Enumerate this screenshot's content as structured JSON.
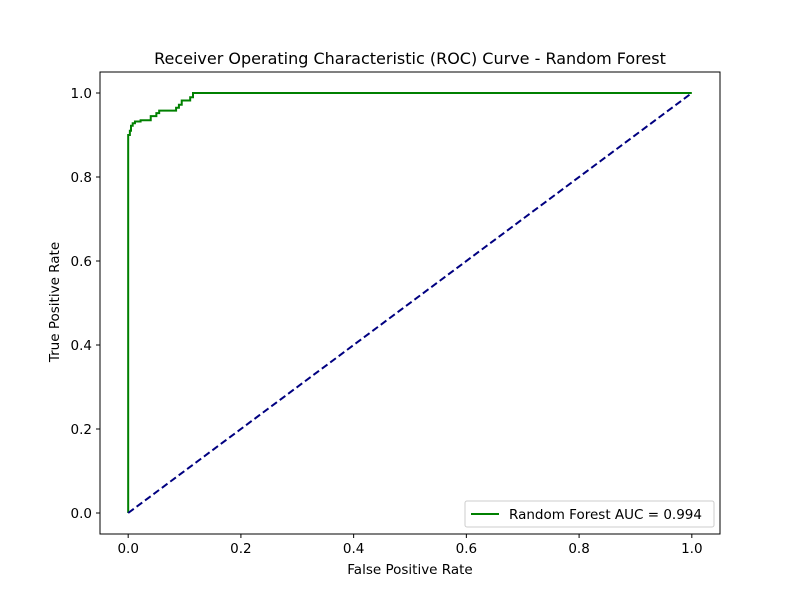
{
  "chart_data": {
    "type": "line",
    "title": "Receiver Operating Characteristic (ROC) Curve - Random Forest",
    "xlabel": "False Positive Rate",
    "ylabel": "True Positive Rate",
    "xlim": [
      -0.05,
      1.05
    ],
    "ylim": [
      -0.05,
      1.05
    ],
    "xticks": [
      "0.0",
      "0.2",
      "0.4",
      "0.6",
      "0.8",
      "1.0"
    ],
    "yticks": [
      "0.0",
      "0.2",
      "0.4",
      "0.6",
      "0.8",
      "1.0"
    ],
    "grid": false,
    "legend_position": "lower-right",
    "series": [
      {
        "name": "Random Forest AUC = 0.994",
        "color": "#008000",
        "style": "solid",
        "x": [
          0.0,
          0.0,
          0.003,
          0.003,
          0.005,
          0.005,
          0.008,
          0.008,
          0.012,
          0.012,
          0.022,
          0.022,
          0.04,
          0.04,
          0.05,
          0.05,
          0.055,
          0.055,
          0.085,
          0.085,
          0.09,
          0.09,
          0.095,
          0.095,
          0.11,
          0.11,
          0.115,
          0.115,
          1.0
        ],
        "y": [
          0.0,
          0.9,
          0.9,
          0.91,
          0.91,
          0.922,
          0.922,
          0.928,
          0.928,
          0.932,
          0.932,
          0.935,
          0.935,
          0.945,
          0.945,
          0.952,
          0.952,
          0.958,
          0.958,
          0.965,
          0.965,
          0.972,
          0.972,
          0.982,
          0.982,
          0.99,
          0.99,
          1.0,
          1.0
        ]
      },
      {
        "color": "#000080",
        "style": "dashed",
        "x": [
          0.0,
          1.0
        ],
        "y": [
          0.0,
          1.0
        ]
      }
    ]
  }
}
